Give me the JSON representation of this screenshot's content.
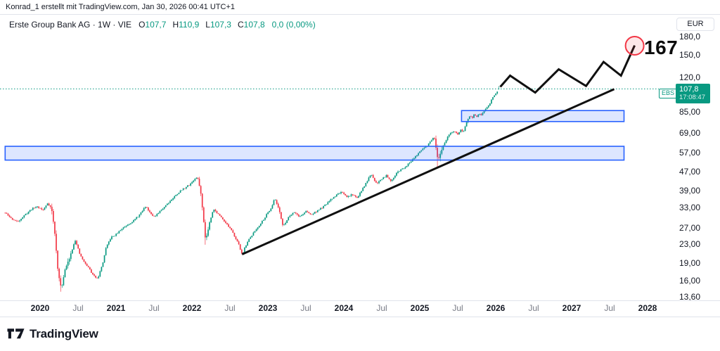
{
  "attribution": {
    "text": "Konrad_1 erstellt mit TradingView.com, Jan 30, 2026 00:41 UTC+1"
  },
  "header": {
    "symbol_title": "Erste Group Bank AG · 1W · VIE",
    "ohlc": [
      {
        "k": "O",
        "v": "107,7"
      },
      {
        "k": "H",
        "v": "110,9"
      },
      {
        "k": "L",
        "v": "107,3"
      },
      {
        "k": "C",
        "v": "107,8"
      }
    ],
    "change": "0,0 (0,00%)"
  },
  "price_scale": {
    "unit": "EUR",
    "last_label": {
      "symbol": "EBS",
      "price": "107,8",
      "time": "17:08:47"
    }
  },
  "footer": {
    "brand": "TradingView"
  },
  "colors": {
    "up": "#089981",
    "down": "#f23645",
    "zone_border": "#2962ff",
    "zone_fill": "rgba(41,98,255,0.16)",
    "drawing_line": "#101010",
    "target_red": "#f23645",
    "target_fill": "rgba(242,54,69,0.12)",
    "badge": "#089981",
    "border": "#e0e3eb",
    "text_primary": "#131722",
    "text_secondary": "#787b86"
  },
  "chart_data": {
    "type": "candlestick",
    "title": "Erste Group Bank AG (EBS) weekly log chart with trendline, zones and zigzag projection to 167",
    "symbol": "Erste Group Bank AG",
    "exchange": "VIE",
    "interval": "1W",
    "unit": "EUR",
    "scale": "logarithmic",
    "grid": false,
    "last_candle": {
      "open": 107.7,
      "high": 110.9,
      "low": 107.3,
      "close": 107.8,
      "change": "0,0 (0,00%)"
    },
    "y_axis": {
      "ticks": [
        {
          "value": 180,
          "label": "180,0"
        },
        {
          "value": 150,
          "label": "150,0"
        },
        {
          "value": 120,
          "label": "120,0"
        },
        {
          "value": 85,
          "label": "85,00"
        },
        {
          "value": 69,
          "label": "69,00"
        },
        {
          "value": 57,
          "label": "57,00"
        },
        {
          "value": 47,
          "label": "47,00"
        },
        {
          "value": 39,
          "label": "39,00"
        },
        {
          "value": 33,
          "label": "33,00"
        },
        {
          "value": 27,
          "label": "27,00"
        },
        {
          "value": 23,
          "label": "23,00"
        },
        {
          "value": 19,
          "label": "19,00"
        },
        {
          "value": 16,
          "label": "16,00"
        },
        {
          "value": 13.6,
          "label": "13,60"
        }
      ],
      "range": [
        13.2,
        200
      ]
    },
    "x_axis": {
      "range_years": [
        2019.5,
        2028.45
      ],
      "ticks": [
        {
          "t": 2020,
          "label": "2020",
          "major": true
        },
        {
          "t": 2020.5,
          "label": "Jul",
          "major": false
        },
        {
          "t": 2021,
          "label": "2021",
          "major": true
        },
        {
          "t": 2021.5,
          "label": "Jul",
          "major": false
        },
        {
          "t": 2022,
          "label": "2022",
          "major": true
        },
        {
          "t": 2022.5,
          "label": "Jul",
          "major": false
        },
        {
          "t": 2023,
          "label": "2023",
          "major": true
        },
        {
          "t": 2023.5,
          "label": "Jul",
          "major": false
        },
        {
          "t": 2024,
          "label": "2024",
          "major": true
        },
        {
          "t": 2024.5,
          "label": "Jul",
          "major": false
        },
        {
          "t": 2025,
          "label": "2025",
          "major": true
        },
        {
          "t": 2025.5,
          "label": "Jul",
          "major": false
        },
        {
          "t": 2026,
          "label": "2026",
          "major": true
        },
        {
          "t": 2026.5,
          "label": "Jul",
          "major": false
        },
        {
          "t": 2027,
          "label": "2027",
          "major": true
        },
        {
          "t": 2027.5,
          "label": "Jul",
          "major": false
        },
        {
          "t": 2028,
          "label": "2028",
          "major": true
        }
      ]
    },
    "price_path": [
      [
        2019.54,
        31.5
      ],
      [
        2019.62,
        29.8
      ],
      [
        2019.7,
        28.8
      ],
      [
        2019.79,
        30.6
      ],
      [
        2019.88,
        32.6
      ],
      [
        2019.96,
        33.6
      ],
      [
        2020.04,
        32.4
      ],
      [
        2020.1,
        34.8
      ],
      [
        2020.15,
        33.0
      ],
      [
        2020.19,
        26.5
      ],
      [
        2020.24,
        17.0
      ],
      [
        2020.28,
        14.9
      ],
      [
        2020.33,
        18.0
      ],
      [
        2020.38,
        19.8
      ],
      [
        2020.42,
        21.8
      ],
      [
        2020.46,
        24.2
      ],
      [
        2020.52,
        21.0
      ],
      [
        2020.58,
        19.3
      ],
      [
        2020.64,
        18.3
      ],
      [
        2020.7,
        16.9
      ],
      [
        2020.76,
        16.5
      ],
      [
        2020.82,
        18.8
      ],
      [
        2020.87,
        22.3
      ],
      [
        2020.93,
        24.6
      ],
      [
        2021.0,
        25.4
      ],
      [
        2021.08,
        27.0
      ],
      [
        2021.16,
        28.2
      ],
      [
        2021.24,
        29.3
      ],
      [
        2021.32,
        31.2
      ],
      [
        2021.39,
        33.7
      ],
      [
        2021.45,
        31.6
      ],
      [
        2021.51,
        30.2
      ],
      [
        2021.58,
        32.0
      ],
      [
        2021.66,
        34.2
      ],
      [
        2021.74,
        36.2
      ],
      [
        2021.82,
        38.5
      ],
      [
        2021.9,
        40.3
      ],
      [
        2021.96,
        41.5
      ],
      [
        2022.02,
        43.5
      ],
      [
        2022.07,
        45.0
      ],
      [
        2022.11,
        40.0
      ],
      [
        2022.15,
        30.0
      ],
      [
        2022.18,
        23.9
      ],
      [
        2022.23,
        28.5
      ],
      [
        2022.28,
        32.8
      ],
      [
        2022.35,
        31.0
      ],
      [
        2022.42,
        29.3
      ],
      [
        2022.5,
        27.0
      ],
      [
        2022.57,
        24.8
      ],
      [
        2022.62,
        22.8
      ],
      [
        2022.66,
        20.9
      ],
      [
        2022.73,
        23.6
      ],
      [
        2022.81,
        25.8
      ],
      [
        2022.89,
        28.0
      ],
      [
        2022.96,
        30.2
      ],
      [
        2023.04,
        33.0
      ],
      [
        2023.09,
        36.3
      ],
      [
        2023.15,
        32.5
      ],
      [
        2023.2,
        27.4
      ],
      [
        2023.27,
        30.2
      ],
      [
        2023.34,
        31.9
      ],
      [
        2023.42,
        30.3
      ],
      [
        2023.5,
        32.0
      ],
      [
        2023.57,
        30.9
      ],
      [
        2023.65,
        32.2
      ],
      [
        2023.73,
        33.4
      ],
      [
        2023.81,
        35.4
      ],
      [
        2023.89,
        37.4
      ],
      [
        2023.96,
        38.8
      ],
      [
        2024.04,
        36.8
      ],
      [
        2024.11,
        38.0
      ],
      [
        2024.17,
        36.5
      ],
      [
        2024.25,
        40.0
      ],
      [
        2024.31,
        43.5
      ],
      [
        2024.36,
        46.0
      ],
      [
        2024.43,
        42.2
      ],
      [
        2024.5,
        44.2
      ],
      [
        2024.56,
        45.8
      ],
      [
        2024.62,
        43.4
      ],
      [
        2024.7,
        47.0
      ],
      [
        2024.78,
        49.0
      ],
      [
        2024.86,
        51.5
      ],
      [
        2024.92,
        54.5
      ],
      [
        2024.98,
        56.5
      ],
      [
        2025.04,
        59.5
      ],
      [
        2025.1,
        61.5
      ],
      [
        2025.15,
        64.5
      ],
      [
        2025.19,
        66.8
      ],
      [
        2025.24,
        52.5
      ],
      [
        2025.3,
        60.5
      ],
      [
        2025.36,
        66.5
      ],
      [
        2025.42,
        70.0
      ],
      [
        2025.46,
        71.0
      ],
      [
        2025.5,
        68.8
      ],
      [
        2025.54,
        71.5
      ],
      [
        2025.57,
        70.0
      ],
      [
        2025.6,
        74.5
      ],
      [
        2025.63,
        79.5
      ],
      [
        2025.66,
        82.5
      ],
      [
        2025.69,
        80.5
      ],
      [
        2025.72,
        84.0
      ],
      [
        2025.75,
        81.5
      ],
      [
        2025.78,
        84.5
      ],
      [
        2025.81,
        82.5
      ],
      [
        2025.84,
        86.0
      ],
      [
        2025.88,
        89.5
      ],
      [
        2025.92,
        93.5
      ],
      [
        2025.96,
        98.5
      ],
      [
        2026.0,
        103.5
      ],
      [
        2026.03,
        106.0
      ],
      [
        2026.06,
        107.8
      ]
    ],
    "volatility_windows": [
      [
        2020.13,
        2020.42,
        0.035
      ],
      [
        2022.08,
        2022.26,
        0.03
      ],
      [
        2023.13,
        2023.24,
        0.02
      ],
      [
        2025.2,
        2025.3,
        0.04
      ]
    ],
    "wick_events": [
      [
        2020.28,
        0.94
      ],
      [
        2022.18,
        0.93
      ],
      [
        2025.24,
        0.9
      ]
    ],
    "drawings": {
      "trendline": {
        "from": [
          2022.66,
          20.9
        ],
        "to": [
          2027.56,
          107.5
        ]
      },
      "projection_zigzag": [
        [
          2026.06,
          110
        ],
        [
          2026.19,
          123
        ],
        [
          2026.52,
          104
        ],
        [
          2026.83,
          131
        ],
        [
          2027.19,
          111
        ],
        [
          2027.42,
          141
        ],
        [
          2027.65,
          123
        ],
        [
          2027.83,
          166
        ]
      ],
      "zones": [
        {
          "name": "demand-zone",
          "t1": 2019.54,
          "t2": 2027.69,
          "price_top": 61.0,
          "price_bottom": 53.2
        },
        {
          "name": "supply-zone",
          "t1": 2025.55,
          "t2": 2027.69,
          "price_top": 87.0,
          "price_bottom": 78.0
        }
      ],
      "target_circle": {
        "t": 2027.83,
        "price": 165.5,
        "radius_px": 13
      },
      "target_label": "167",
      "current_price_line": 107.8
    }
  }
}
